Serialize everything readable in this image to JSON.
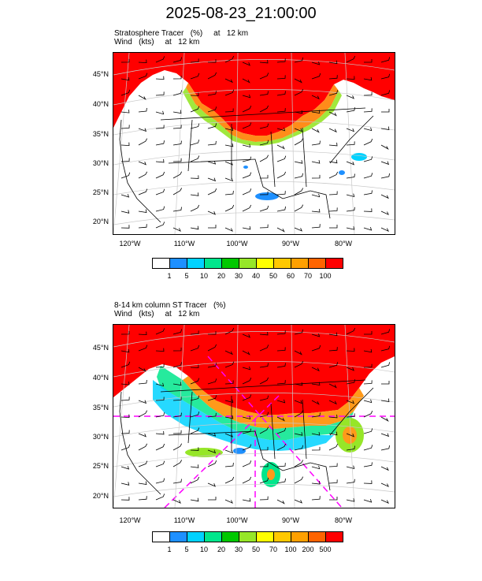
{
  "title": "2025-08-23_21:00:00",
  "panel1": {
    "subtitle_line1": "Stratosphere Tracer   (%)     at   12 km",
    "subtitle_line2": "Wind   (kts)     at   12 km",
    "colorbar_labels": [
      "1",
      "5",
      "10",
      "20",
      "30",
      "40",
      "50",
      "60",
      "70",
      "100"
    ],
    "colorbar_colors": [
      "#ffffff",
      "#1e90ff",
      "#00d2ff",
      "#00e68c",
      "#00c800",
      "#96e628",
      "#ffff00",
      "#ffc800",
      "#ffa000",
      "#ff6400",
      "#ff0000"
    ]
  },
  "panel2": {
    "subtitle_line1": "8-14 km column ST Tracer   (%)",
    "subtitle_line2": "Wind   (kts)     at   12 km",
    "colorbar_labels": [
      "1",
      "5",
      "10",
      "20",
      "30",
      "50",
      "70",
      "100",
      "200",
      "500"
    ],
    "colorbar_colors": [
      "#ffffff",
      "#1e90ff",
      "#00d2ff",
      "#00e68c",
      "#00c800",
      "#96e628",
      "#ffff00",
      "#ffc800",
      "#ffa000",
      "#ff6400",
      "#ff0000"
    ]
  },
  "lat_labels": [
    "45°N",
    "40°N",
    "35°N",
    "30°N",
    "25°N",
    "20°N"
  ],
  "lon_labels": [
    "120°W",
    "110°W",
    "100°W",
    "90°W",
    "80°W"
  ]
}
